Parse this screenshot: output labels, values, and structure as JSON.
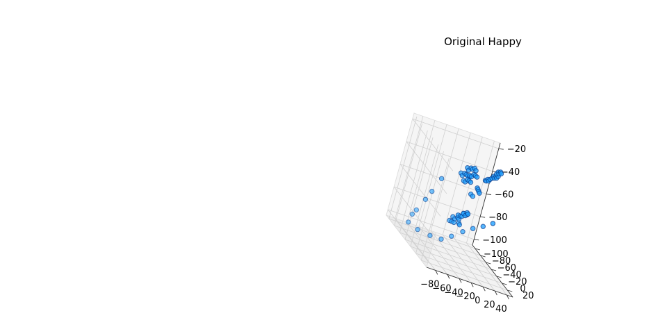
{
  "chart_data": {
    "type": "scatter",
    "projection": "3d",
    "title": "Original Happy",
    "xlabel": "",
    "ylabel": "",
    "zlabel": "",
    "xlim": [
      -95,
      50
    ],
    "ylim": [
      -110,
      40
    ],
    "zlim": [
      -105,
      -15
    ],
    "xticks": [
      "−80",
      "−60",
      "−40",
      "−20",
      "0",
      "20",
      "40"
    ],
    "yticks": [
      "−100",
      "−80",
      "−60",
      "−40",
      "−20",
      "0",
      "20"
    ],
    "zticks": [
      "−100",
      "−80",
      "−60",
      "−40",
      "−20"
    ],
    "grid": true,
    "legend": "none",
    "marker_face_color": "#1ea0ff",
    "marker_edge_color": "#0a3c8c",
    "pane_color": "#f2f2f2",
    "points": [
      {
        "x": -56,
        "y": 8,
        "z": -20
      },
      {
        "x": -52,
        "y": 6,
        "z": -22
      },
      {
        "x": -48,
        "y": 4,
        "z": -20
      },
      {
        "x": -44,
        "y": 2,
        "z": -21
      },
      {
        "x": -40,
        "y": 0,
        "z": -20
      },
      {
        "x": -36,
        "y": -2,
        "z": -22
      },
      {
        "x": -50,
        "y": 10,
        "z": -25
      },
      {
        "x": -46,
        "y": 8,
        "z": -26
      },
      {
        "x": -42,
        "y": 6,
        "z": -24
      },
      {
        "x": -38,
        "y": 4,
        "z": -25
      },
      {
        "x": -34,
        "y": 2,
        "z": -26
      },
      {
        "x": -58,
        "y": -2,
        "z": -28
      },
      {
        "x": -54,
        "y": -4,
        "z": -30
      },
      {
        "x": -50,
        "y": -6,
        "z": -28
      },
      {
        "x": -46,
        "y": -8,
        "z": -29
      },
      {
        "x": -42,
        "y": -10,
        "z": -30
      },
      {
        "x": -38,
        "y": -12,
        "z": -31
      },
      {
        "x": -52,
        "y": 0,
        "z": -33
      },
      {
        "x": -48,
        "y": -2,
        "z": -34
      },
      {
        "x": -44,
        "y": -4,
        "z": -32
      },
      {
        "x": -40,
        "y": -6,
        "z": -33
      },
      {
        "x": -36,
        "y": -8,
        "z": -34
      },
      {
        "x": 6,
        "y": -18,
        "z": -22
      },
      {
        "x": 10,
        "y": -22,
        "z": -21
      },
      {
        "x": 14,
        "y": -26,
        "z": -23
      },
      {
        "x": 18,
        "y": -30,
        "z": -22
      },
      {
        "x": 22,
        "y": -34,
        "z": -24
      },
      {
        "x": 4,
        "y": -24,
        "z": -28
      },
      {
        "x": 8,
        "y": -28,
        "z": -27
      },
      {
        "x": 12,
        "y": -32,
        "z": -29
      },
      {
        "x": 16,
        "y": -36,
        "z": -28
      },
      {
        "x": 20,
        "y": -40,
        "z": -30
      },
      {
        "x": 24,
        "y": -44,
        "z": -29
      },
      {
        "x": -2,
        "y": -30,
        "z": -33
      },
      {
        "x": 2,
        "y": -34,
        "z": -34
      },
      {
        "x": 6,
        "y": -38,
        "z": -33
      },
      {
        "x": 10,
        "y": -42,
        "z": -35
      },
      {
        "x": 14,
        "y": -46,
        "z": -34
      },
      {
        "x": -20,
        "y": -14,
        "z": -38
      },
      {
        "x": -16,
        "y": -18,
        "z": -40
      },
      {
        "x": -12,
        "y": -22,
        "z": -42
      },
      {
        "x": -8,
        "y": -26,
        "z": -44
      },
      {
        "x": -24,
        "y": -20,
        "z": -46
      },
      {
        "x": -18,
        "y": -24,
        "z": -48
      },
      {
        "x": -28,
        "y": -6,
        "z": -60
      },
      {
        "x": -32,
        "y": -12,
        "z": -62
      },
      {
        "x": -26,
        "y": -16,
        "z": -64
      },
      {
        "x": -22,
        "y": -20,
        "z": -62
      },
      {
        "x": -18,
        "y": -26,
        "z": -65
      },
      {
        "x": -36,
        "y": -18,
        "z": -66
      },
      {
        "x": -30,
        "y": -22,
        "z": -67
      },
      {
        "x": -24,
        "y": -28,
        "z": -68
      },
      {
        "x": -20,
        "y": -32,
        "z": -66
      },
      {
        "x": -40,
        "y": -24,
        "z": -70
      },
      {
        "x": -34,
        "y": -28,
        "z": -72
      },
      {
        "x": -28,
        "y": -32,
        "z": -71
      },
      {
        "x": -22,
        "y": -38,
        "z": -73
      },
      {
        "x": -38,
        "y": -34,
        "z": -76
      },
      {
        "x": -32,
        "y": -38,
        "z": -77
      },
      {
        "x": -26,
        "y": -42,
        "z": -78
      },
      {
        "x": -16,
        "y": -46,
        "z": -78
      },
      {
        "x": -12,
        "y": -50,
        "z": -80
      },
      {
        "x": -80,
        "y": -12,
        "z": -40
      },
      {
        "x": -84,
        "y": -22,
        "z": -55
      },
      {
        "x": -86,
        "y": -30,
        "z": -65
      },
      {
        "x": -90,
        "y": -40,
        "z": -78
      },
      {
        "x": -88,
        "y": -52,
        "z": -85
      },
      {
        "x": -84,
        "y": -64,
        "z": -95
      },
      {
        "x": -62,
        "y": -72,
        "z": -100
      },
      {
        "x": -36,
        "y": -80,
        "z": -103
      },
      {
        "x": -14,
        "y": -86,
        "z": -104
      },
      {
        "x": 4,
        "y": -92,
        "z": -100
      },
      {
        "x": 16,
        "y": -86,
        "z": -92
      },
      {
        "x": 26,
        "y": -78,
        "z": -85
      },
      {
        "x": 34,
        "y": -66,
        "z": -78
      },
      {
        "x": 40,
        "y": -52,
        "z": -70
      }
    ]
  }
}
